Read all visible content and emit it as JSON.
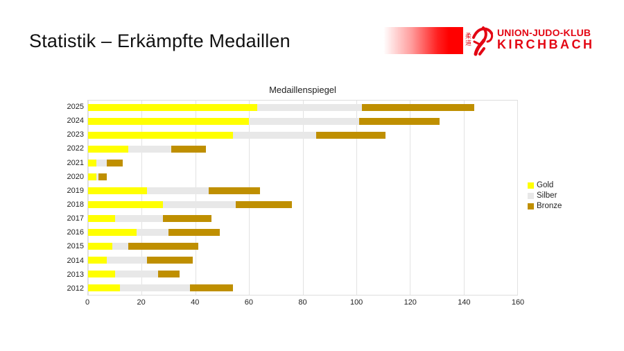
{
  "page": {
    "title": "Statistik – Erkämpfte Medaillen"
  },
  "logo": {
    "club_line1": "UNION-JUDO-KLUB",
    "club_line2": "KIRCHBACH",
    "kanji_top": "柔",
    "kanji_bottom": "道",
    "color": "#e30613",
    "gradient_from": "#ffffff",
    "gradient_to": "#ff0000"
  },
  "chart_data": {
    "type": "bar",
    "orientation": "horizontal",
    "stacked": true,
    "title": "Medaillenspiegel",
    "categories": [
      "2025",
      "2024",
      "2023",
      "2022",
      "2021",
      "2020",
      "2019",
      "2018",
      "2017",
      "2016",
      "2015",
      "2014",
      "2013",
      "2012"
    ],
    "series": [
      {
        "name": "Gold",
        "color": "#ffff00",
        "values": [
          63,
          60,
          54,
          15,
          3,
          3,
          22,
          28,
          10,
          18,
          9,
          7,
          10,
          12
        ]
      },
      {
        "name": "Silber",
        "color": "#e8e8e8",
        "values": [
          39,
          41,
          31,
          16,
          4,
          1,
          23,
          27,
          18,
          12,
          6,
          15,
          16,
          26
        ]
      },
      {
        "name": "Bronze",
        "color": "#bf8f00",
        "values": [
          42,
          30,
          26,
          13,
          6,
          3,
          19,
          21,
          18,
          19,
          26,
          17,
          8,
          16
        ]
      }
    ],
    "totals": [
      144,
      131,
      111,
      44,
      13,
      7,
      64,
      76,
      46,
      49,
      41,
      39,
      34,
      54
    ],
    "xlim": [
      0,
      160
    ],
    "xticks": [
      0,
      20,
      40,
      60,
      80,
      100,
      120,
      140,
      160
    ],
    "grid": true,
    "legend_position": "right"
  }
}
